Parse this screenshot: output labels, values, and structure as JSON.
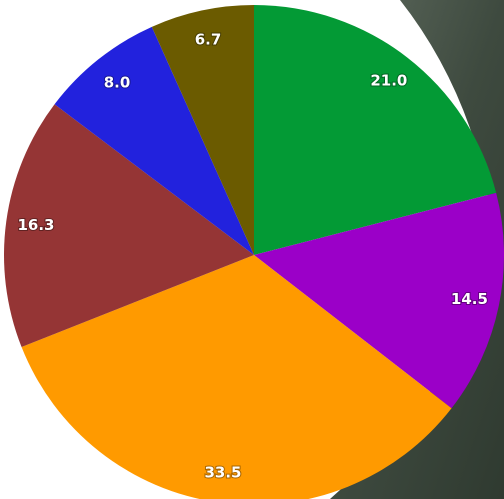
{
  "chart_data": {
    "type": "pie",
    "values": [
      21.0,
      14.5,
      33.5,
      16.3,
      8.0,
      6.7
    ],
    "value_labels": [
      "21.0",
      "14.5",
      "33.5",
      "16.3",
      "8.0",
      "6.7"
    ],
    "colors": [
      "#039a35",
      "#9b00c8",
      "#ff9a00",
      "#953535",
      "#2222dd",
      "#6b5b00"
    ]
  }
}
